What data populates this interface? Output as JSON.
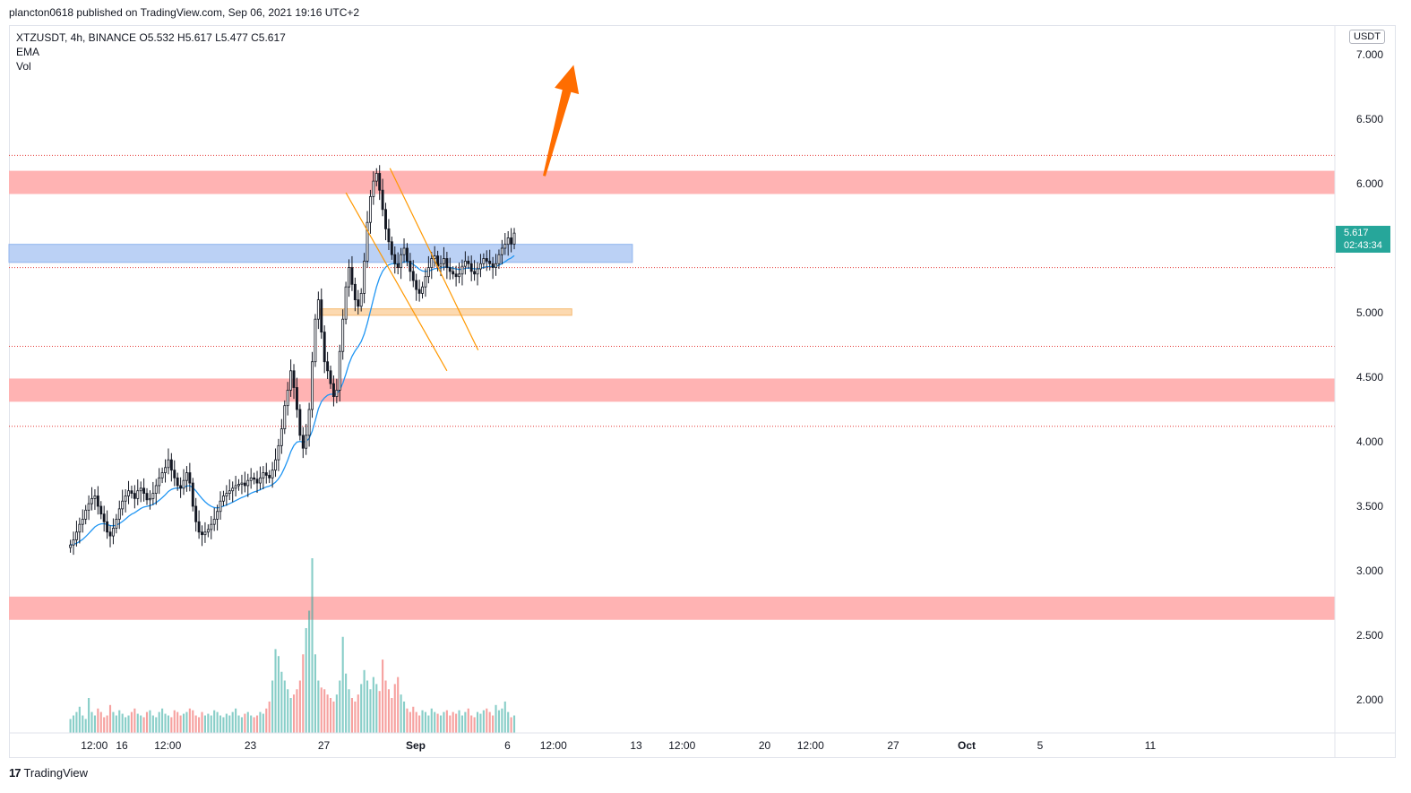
{
  "header": {
    "published_line": "plancton0618 published on TradingView.com, Sep 06, 2021 19:16 UTC+2"
  },
  "legend": {
    "line1": "XTZUSDT, 4h, BINANCE  O5.532  H5.617  L5.477  C5.617",
    "ema": "EMA",
    "vol": "Vol"
  },
  "price_axis": {
    "currency": "USDT",
    "last_price": "5.617",
    "countdown": "02:43:34"
  },
  "footer": {
    "logo_text": "TradingView",
    "logo_mark": "17"
  },
  "colors": {
    "up": "#26a69a",
    "down": "#ef5350",
    "ema": "#2196f3",
    "resistance_zone": "#ffb3b3",
    "support_blue": "#bbd1f5",
    "orange_zone": "#fcd9b0",
    "channel": "#ff9800",
    "arrow": "#ff6d00",
    "dotted_level": "#e53935"
  },
  "chart_data": {
    "type": "candlestick",
    "symbol": "XTZUSDT",
    "interval": "4h",
    "exchange": "BINANCE",
    "ohlc_last": {
      "open": 5.532,
      "high": 5.617,
      "low": 5.477,
      "close": 5.617
    },
    "ylim": [
      1.8,
      7.1
    ],
    "y_ticks": [
      {
        "value": 7.0,
        "label": "7.000"
      },
      {
        "value": 6.5,
        "label": "6.500"
      },
      {
        "value": 6.0,
        "label": "6.000"
      },
      {
        "value": 5.5,
        "label": ""
      },
      {
        "value": 5.0,
        "label": "5.000"
      },
      {
        "value": 4.5,
        "label": "4.500"
      },
      {
        "value": 4.0,
        "label": "4.000"
      },
      {
        "value": 3.5,
        "label": "3.500"
      },
      {
        "value": 3.0,
        "label": "3.000"
      },
      {
        "value": 2.5,
        "label": "2.500"
      },
      {
        "value": 2.0,
        "label": "2.000"
      }
    ],
    "x_ticks": [
      {
        "day": 14.5,
        "label": "12:00",
        "bold": false
      },
      {
        "day": 16.0,
        "label": "16",
        "bold": false
      },
      {
        "day": 18.5,
        "label": "12:00",
        "bold": false
      },
      {
        "day": 23.0,
        "label": "23",
        "bold": false
      },
      {
        "day": 27.0,
        "label": "27",
        "bold": false
      },
      {
        "day": 32.0,
        "label": "Sep",
        "bold": true
      },
      {
        "day": 37.0,
        "label": "6",
        "bold": false
      },
      {
        "day": 39.5,
        "label": "12:00",
        "bold": false
      },
      {
        "day": 44.0,
        "label": "13",
        "bold": false
      },
      {
        "day": 46.5,
        "label": "12:00",
        "bold": false
      },
      {
        "day": 51.0,
        "label": "20",
        "bold": false
      },
      {
        "day": 53.5,
        "label": "12:00",
        "bold": false
      },
      {
        "day": 58.0,
        "label": "27",
        "bold": false
      },
      {
        "day": 62.0,
        "label": "Oct",
        "bold": true
      },
      {
        "day": 66.0,
        "label": "5",
        "bold": false
      },
      {
        "day": 72.0,
        "label": "11",
        "bold": false
      }
    ],
    "candles_start_day": 13.2,
    "candle_interval_days": 0.16667,
    "closes": [
      3.2,
      3.24,
      3.3,
      3.36,
      3.4,
      3.47,
      3.52,
      3.56,
      3.58,
      3.5,
      3.44,
      3.38,
      3.3,
      3.27,
      3.33,
      3.4,
      3.48,
      3.54,
      3.58,
      3.62,
      3.6,
      3.56,
      3.62,
      3.64,
      3.6,
      3.55,
      3.56,
      3.6,
      3.66,
      3.72,
      3.76,
      3.8,
      3.86,
      3.78,
      3.72,
      3.66,
      3.64,
      3.7,
      3.76,
      3.68,
      3.5,
      3.38,
      3.3,
      3.28,
      3.3,
      3.32,
      3.36,
      3.4,
      3.46,
      3.54,
      3.58,
      3.6,
      3.62,
      3.64,
      3.66,
      3.67,
      3.68,
      3.66,
      3.7,
      3.72,
      3.71,
      3.68,
      3.72,
      3.76,
      3.74,
      3.72,
      3.78,
      3.86,
      3.97,
      4.1,
      4.28,
      4.4,
      4.55,
      4.42,
      4.25,
      4.05,
      3.95,
      4.05,
      4.25,
      4.62,
      4.95,
      5.1,
      4.85,
      4.62,
      4.55,
      4.45,
      4.35,
      4.4,
      4.7,
      4.95,
      5.2,
      5.35,
      5.22,
      5.1,
      5.05,
      5.15,
      5.4,
      5.7,
      5.9,
      6.02,
      6.08,
      5.95,
      5.8,
      5.65,
      5.55,
      5.45,
      5.38,
      5.35,
      5.45,
      5.5,
      5.4,
      5.32,
      5.25,
      5.18,
      5.15,
      5.2,
      5.28,
      5.35,
      5.42,
      5.44,
      5.36,
      5.38,
      5.42,
      5.35,
      5.32,
      5.3,
      5.28,
      5.3,
      5.36,
      5.4,
      5.38,
      5.32,
      5.3,
      5.34,
      5.38,
      5.42,
      5.4,
      5.38,
      5.35,
      5.38,
      5.45,
      5.5,
      5.53,
      5.58,
      5.532,
      5.617
    ],
    "volume_scale_max": 1.0,
    "volumes": [
      0.08,
      0.1,
      0.12,
      0.15,
      0.1,
      0.08,
      0.2,
      0.12,
      0.1,
      0.14,
      0.12,
      0.09,
      0.1,
      0.16,
      0.12,
      0.1,
      0.13,
      0.11,
      0.09,
      0.1,
      0.12,
      0.14,
      0.11,
      0.1,
      0.09,
      0.12,
      0.13,
      0.1,
      0.09,
      0.12,
      0.14,
      0.11,
      0.1,
      0.09,
      0.13,
      0.12,
      0.1,
      0.11,
      0.12,
      0.14,
      0.13,
      0.1,
      0.09,
      0.12,
      0.1,
      0.11,
      0.1,
      0.13,
      0.12,
      0.1,
      0.09,
      0.11,
      0.1,
      0.12,
      0.14,
      0.1,
      0.09,
      0.11,
      0.12,
      0.1,
      0.09,
      0.1,
      0.12,
      0.11,
      0.14,
      0.18,
      0.3,
      0.48,
      0.44,
      0.35,
      0.3,
      0.25,
      0.2,
      0.22,
      0.25,
      0.3,
      0.45,
      0.6,
      0.7,
      1.0,
      0.45,
      0.3,
      0.26,
      0.25,
      0.22,
      0.2,
      0.18,
      0.22,
      0.3,
      0.55,
      0.34,
      0.25,
      0.2,
      0.18,
      0.22,
      0.28,
      0.36,
      0.3,
      0.25,
      0.32,
      0.28,
      0.24,
      0.42,
      0.3,
      0.25,
      0.2,
      0.28,
      0.32,
      0.22,
      0.18,
      0.14,
      0.12,
      0.15,
      0.12,
      0.1,
      0.13,
      0.12,
      0.1,
      0.14,
      0.12,
      0.11,
      0.1,
      0.12,
      0.13,
      0.1,
      0.12,
      0.11,
      0.13,
      0.1,
      0.12,
      0.14,
      0.1,
      0.09,
      0.12,
      0.11,
      0.13,
      0.14,
      0.12,
      0.1,
      0.16,
      0.13,
      0.14,
      0.18,
      0.12,
      0.09,
      0.1
    ],
    "annotations": {
      "resistance_zones": [
        {
          "from": 5.92,
          "to": 6.1
        },
        {
          "from": 4.31,
          "to": 4.49
        },
        {
          "from": 2.62,
          "to": 2.8
        }
      ],
      "dotted_levels": [
        6.22,
        5.35,
        4.74,
        4.12
      ],
      "blue_zone": {
        "from": 5.39,
        "to": 5.53,
        "x_end_day": 43.8
      },
      "orange_zone": {
        "from": 4.98,
        "to": 5.03,
        "x_start_day": 26.8,
        "x_end_day": 40.5
      },
      "channel_lines": [
        {
          "x1": 28.2,
          "y1": 5.93,
          "x2": 33.7,
          "y2": 4.55
        },
        {
          "x1": 30.6,
          "y1": 6.12,
          "x2": 35.4,
          "y2": 4.71
        }
      ],
      "arrow": {
        "x1": 39.0,
        "y1": 6.06,
        "x2": 40.6,
        "y2": 6.92
      }
    }
  }
}
